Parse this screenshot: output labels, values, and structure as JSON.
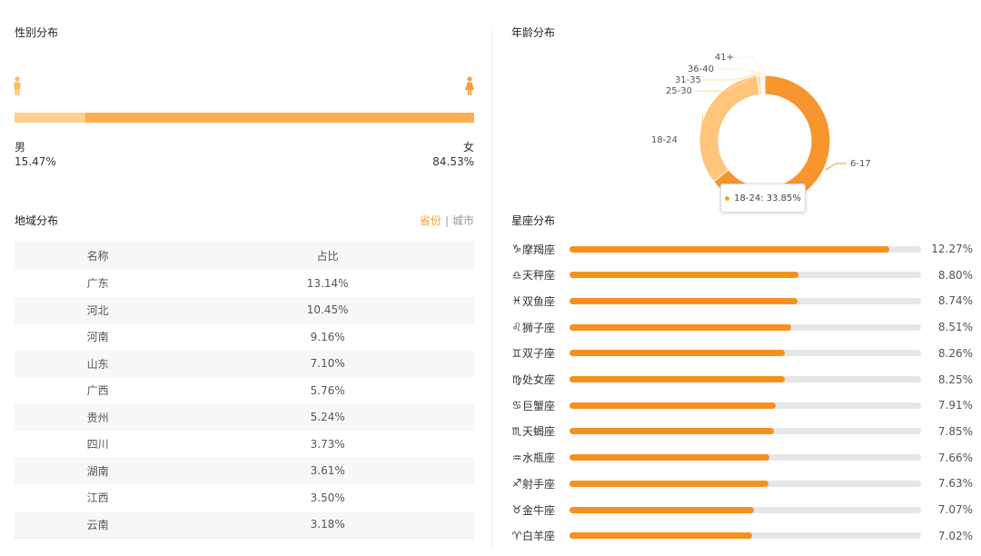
{
  "gender": {
    "title": "性别分布",
    "male_label": "男",
    "female_label": "女",
    "male_pct_text": "15.47%",
    "female_pct_text": "84.53%",
    "male_fraction": 0.1547,
    "colors": {
      "male": "#ffd08e",
      "female": "#fcaf50",
      "icon_male": "#fbbd63",
      "icon_female": "#f7a234"
    }
  },
  "region": {
    "title": "地域分布",
    "toggle_province": "省份",
    "toggle_separator": "|",
    "toggle_city": "城市",
    "headers": [
      "名称",
      "占比"
    ],
    "rows": [
      [
        "广东",
        "13.14%"
      ],
      [
        "河北",
        "10.45%"
      ],
      [
        "河南",
        "9.16%"
      ],
      [
        "山东",
        "7.10%"
      ],
      [
        "广西",
        "5.76%"
      ],
      [
        "贵州",
        "5.24%"
      ],
      [
        "四川",
        "3.73%"
      ],
      [
        "湖南",
        "3.61%"
      ],
      [
        "江西",
        "3.50%"
      ],
      [
        "云南",
        "3.18%"
      ]
    ]
  },
  "age": {
    "title": "年龄分布",
    "tooltip": "18-24: 33.85%"
  },
  "zodiac": {
    "title": "星座分布"
  },
  "chart_data": [
    {
      "type": "pie",
      "title": "年龄分布",
      "donut": true,
      "categories": [
        "6-17",
        "18-24",
        "25-30",
        "31-35",
        "36-40",
        "41+"
      ],
      "values": [
        64.3,
        33.85,
        0.8,
        0.45,
        0.35,
        0.25
      ],
      "colors": [
        "#f7962d",
        "#ffc57b",
        "#ffd9a3",
        "#ffe3b8",
        "#ffecca",
        "#fff3dc"
      ]
    },
    {
      "type": "bar",
      "title": "星座分布",
      "orientation": "horizontal",
      "categories": [
        "摩羯座",
        "天秤座",
        "双鱼座",
        "狮子座",
        "双子座",
        "处女座",
        "巨蟹座",
        "天蝎座",
        "水瓶座",
        "射手座",
        "金牛座",
        "白羊座"
      ],
      "icons": [
        "♑",
        "♎",
        "♓",
        "♌",
        "♊",
        "♍",
        "♋",
        "♏",
        "♒",
        "♐",
        "♉",
        "♈"
      ],
      "values": [
        12.27,
        8.8,
        8.74,
        8.51,
        8.26,
        8.25,
        7.91,
        7.85,
        7.66,
        7.63,
        7.07,
        7.02
      ],
      "value_labels": [
        "12.27%",
        "8.80%",
        "8.74%",
        "8.51%",
        "8.26%",
        "8.25%",
        "7.91%",
        "7.85%",
        "7.66%",
        "7.63%",
        "7.07%",
        "7.02%"
      ],
      "xlim": [
        0,
        13.5
      ]
    }
  ]
}
